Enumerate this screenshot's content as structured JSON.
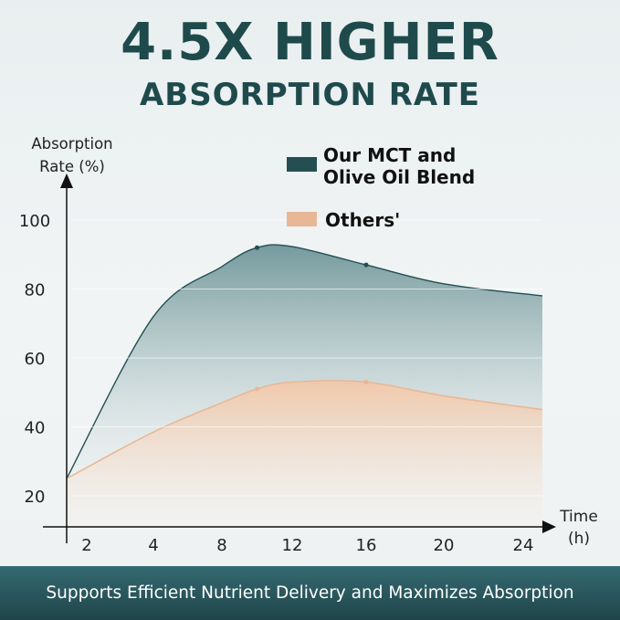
{
  "header": {
    "title_line1": "4.5X HIGHER",
    "title_line2": "ABSORPTION RATE"
  },
  "footer": {
    "banner_text": "Supports Efficient Nutrient Delivery and Maximizes Absorption"
  },
  "chart_data": {
    "type": "area",
    "ylabel_line1": "Absorption",
    "ylabel_line2": "Rate (%)",
    "xlabel_line1": "Time",
    "xlabel_line2": "(h)",
    "x_ticks": [
      "2",
      "4",
      "8",
      "12",
      "16",
      "20",
      "24"
    ],
    "y_ticks": [
      "20",
      "40",
      "60",
      "80",
      "100"
    ],
    "ylim": [
      20,
      100
    ],
    "grid": false,
    "legend_position": "top-right",
    "series": [
      {
        "name": "Our MCT and Olive Oil Blend",
        "name_line1": "Our MCT and",
        "name_line2": "Olive Oil Blend",
        "color": "#234f52",
        "points": [
          [
            0,
            25
          ],
          [
            4,
            72
          ],
          [
            8,
            86.5
          ],
          [
            10,
            92
          ],
          [
            12,
            92.3
          ],
          [
            16,
            87
          ],
          [
            20,
            81.5
          ],
          [
            25,
            78
          ]
        ],
        "markers": [
          10,
          16
        ]
      },
      {
        "name": "Others'",
        "name_line1": "Others'",
        "name_line2": "",
        "color": "#e8b896",
        "points": [
          [
            0,
            25
          ],
          [
            4,
            38.5
          ],
          [
            8,
            47
          ],
          [
            10,
            51
          ],
          [
            12,
            53
          ],
          [
            16,
            53
          ],
          [
            20,
            49
          ],
          [
            25,
            45
          ]
        ],
        "markers": [
          10,
          16
        ]
      }
    ]
  }
}
